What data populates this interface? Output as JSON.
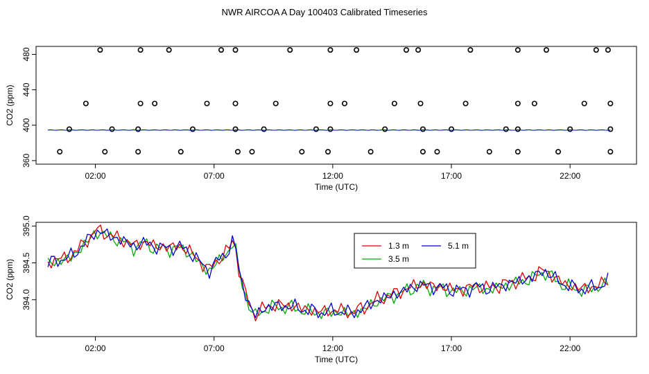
{
  "title": "NWR AIRCOA A  Day 100403  Calibrated Timeseries",
  "colors": {
    "red": "#dd0000",
    "green": "#00aa00",
    "blue": "#0000cc",
    "axis": "#000000"
  },
  "chart_data": [
    {
      "type": "scatter",
      "xlabel": "Time (UTC)",
      "ylabel": "CO2 (ppm)",
      "x_ticks": [
        "02:00",
        "07:00",
        "12:00",
        "17:00",
        "22:00"
      ],
      "x_tick_hours": [
        2,
        7,
        12,
        17,
        22
      ],
      "y_ticks": [
        "360",
        "400",
        "440",
        "480"
      ],
      "y_tick_values": [
        360,
        400,
        440,
        480
      ],
      "xlim_hours": [
        -0.5,
        24.8
      ],
      "ylim": [
        356,
        489
      ],
      "points_hours": {
        "y485": [
          2.2,
          3.9,
          5.1,
          7.3,
          7.9,
          10.2,
          11.9,
          13.0,
          15.1,
          15.6,
          17.8,
          19.8,
          21.0,
          23.1,
          23.6
        ],
        "y425": [
          1.6,
          3.9,
          4.5,
          6.7,
          7.9,
          9.6,
          11.9,
          12.5,
          14.6,
          15.7,
          17.6,
          19.8,
          20.5,
          22.6,
          23.7
        ],
        "y395": [
          0.9,
          2.7,
          3.8,
          6.1,
          7.9,
          9.1,
          11.3,
          11.9,
          14.2,
          15.8,
          17.0,
          19.3,
          19.8,
          22.0,
          23.7
        ],
        "y370": [
          0.5,
          2.4,
          3.8,
          5.6,
          8.0,
          8.6,
          10.7,
          11.8,
          13.6,
          15.8,
          16.4,
          18.6,
          19.8,
          21.5,
          23.7
        ]
      },
      "line_value": 394.5,
      "line_range_hours": [
        0.0,
        23.7
      ]
    },
    {
      "type": "line",
      "xlabel": "Time (UTC)",
      "ylabel": "CO2 (ppm)",
      "x_ticks": [
        "02:00",
        "07:00",
        "12:00",
        "17:00",
        "22:00"
      ],
      "x_tick_hours": [
        2,
        7,
        12,
        17,
        22
      ],
      "y_ticks": [
        "394.0",
        "394.5",
        "395.0"
      ],
      "y_tick_values": [
        394.0,
        394.5,
        395.0
      ],
      "xlim_hours": [
        -0.5,
        24.8
      ],
      "ylim": [
        393.5,
        395.05
      ],
      "legend": [
        {
          "name": "1.3 m",
          "color": "#dd0000"
        },
        {
          "name": "5.1 m",
          "color": "#0000cc"
        },
        {
          "name": "3.5 m",
          "color": "#00aa00"
        }
      ],
      "anchors": [
        [
          0.0,
          394.48
        ],
        [
          0.4,
          394.55
        ],
        [
          0.8,
          394.55
        ],
        [
          1.3,
          394.68
        ],
        [
          1.7,
          394.82
        ],
        [
          2.0,
          394.92
        ],
        [
          2.3,
          394.92
        ],
        [
          2.7,
          394.85
        ],
        [
          3.2,
          394.8
        ],
        [
          3.6,
          394.72
        ],
        [
          4.0,
          394.78
        ],
        [
          4.5,
          394.72
        ],
        [
          5.0,
          394.7
        ],
        [
          5.5,
          394.72
        ],
        [
          6.0,
          394.65
        ],
        [
          6.4,
          394.5
        ],
        [
          6.8,
          394.4
        ],
        [
          7.2,
          394.55
        ],
        [
          7.6,
          394.65
        ],
        [
          7.85,
          394.85
        ],
        [
          8.1,
          394.3
        ],
        [
          8.4,
          394.0
        ],
        [
          8.7,
          393.78
        ],
        [
          9.2,
          393.9
        ],
        [
          9.8,
          393.92
        ],
        [
          10.4,
          393.9
        ],
        [
          11.0,
          393.85
        ],
        [
          11.6,
          393.83
        ],
        [
          12.2,
          393.85
        ],
        [
          12.8,
          393.82
        ],
        [
          13.3,
          393.88
        ],
        [
          13.8,
          393.98
        ],
        [
          14.4,
          394.05
        ],
        [
          15.0,
          394.12
        ],
        [
          15.6,
          394.2
        ],
        [
          16.2,
          394.18
        ],
        [
          16.8,
          394.15
        ],
        [
          17.4,
          394.12
        ],
        [
          18.0,
          394.18
        ],
        [
          18.6,
          394.15
        ],
        [
          19.2,
          394.2
        ],
        [
          19.8,
          394.25
        ],
        [
          20.4,
          394.3
        ],
        [
          20.9,
          394.4
        ],
        [
          21.3,
          394.3
        ],
        [
          21.8,
          394.2
        ],
        [
          22.3,
          394.15
        ],
        [
          22.8,
          394.15
        ],
        [
          23.3,
          394.2
        ],
        [
          23.6,
          394.25
        ]
      ]
    }
  ]
}
